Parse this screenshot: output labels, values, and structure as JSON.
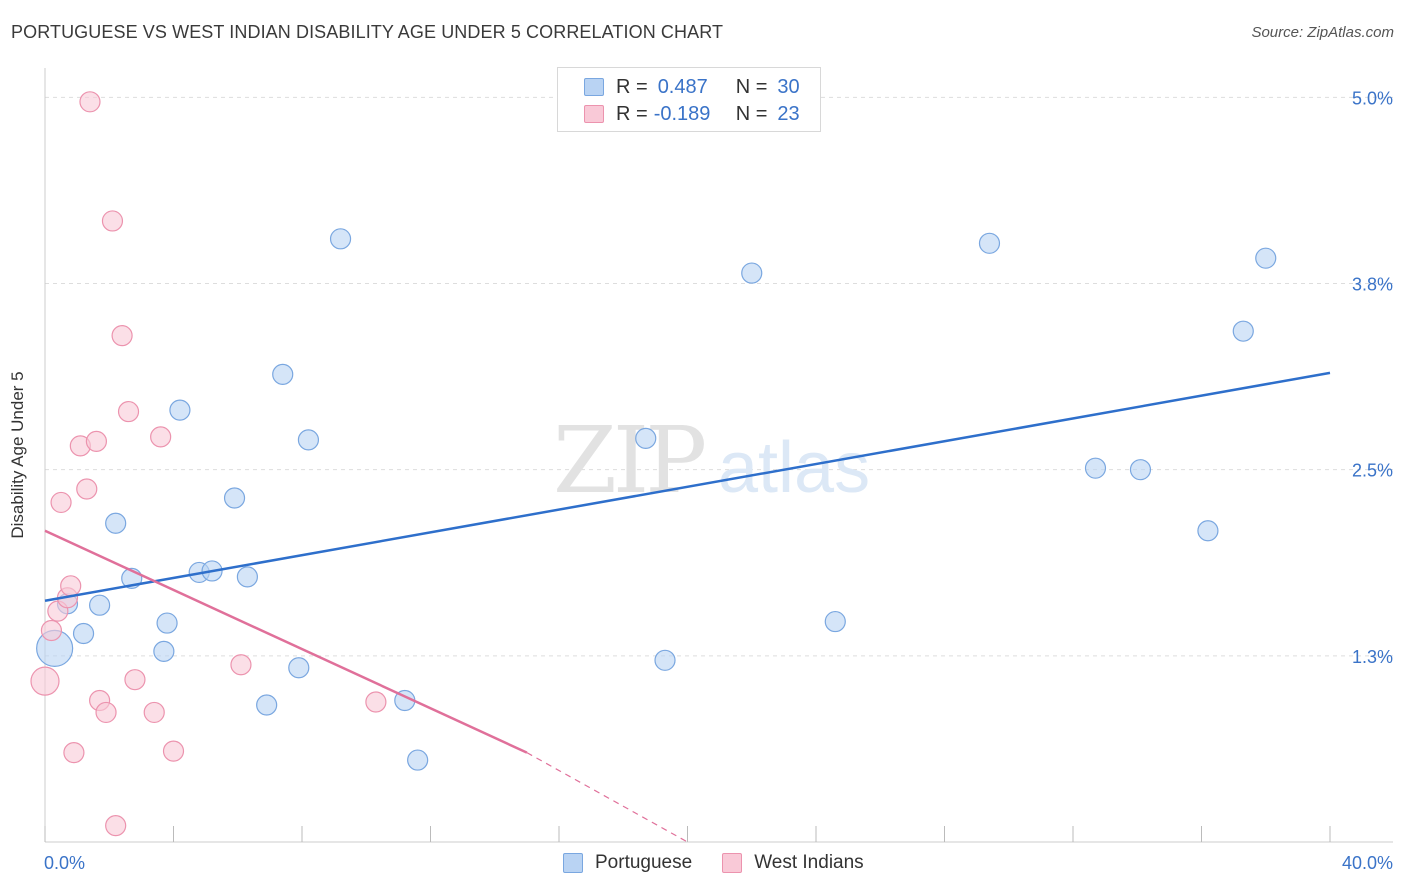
{
  "header": {
    "title": "PORTUGUESE VS WEST INDIAN DISABILITY AGE UNDER 5 CORRELATION CHART",
    "source": "Source: ZipAtlas.com"
  },
  "watermark": {
    "zip": "ZIP",
    "atlas": "atlas"
  },
  "legend": {
    "r_label": "R =",
    "n_label": "N =",
    "portuguese": {
      "r": "0.487",
      "n": "30"
    },
    "west_indians": {
      "r": "-0.189",
      "n": "23"
    }
  },
  "bottom_legend": {
    "portuguese": "Portuguese",
    "west_indians": "West Indians"
  },
  "colors": {
    "portuguese_fill": "#b9d3f3",
    "portuguese_stroke": "#7aa7e0",
    "portuguese_line": "#2e6fcb",
    "west_fill": "#f9c9d7",
    "west_stroke": "#ec93ae",
    "west_line": "#e0709a",
    "axis_text": "#3a73c8"
  },
  "chart_data": {
    "type": "scatter",
    "title": "PORTUGUESE VS WEST INDIAN DISABILITY AGE UNDER 5 CORRELATION CHART",
    "xlabel": "",
    "ylabel": "Disability Age Under 5",
    "xlim": [
      0,
      40
    ],
    "ylim": [
      0,
      5.15
    ],
    "x_tick_labels": [
      "0.0%",
      "40.0%"
    ],
    "y_ticks": [
      1.25,
      2.5,
      3.75,
      5.0
    ],
    "y_tick_labels": [
      "1.3%",
      "2.5%",
      "3.8%",
      "5.0%"
    ],
    "series": [
      {
        "name": "Portuguese",
        "points": [
          [
            0.3,
            1.3,
            18
          ],
          [
            0.7,
            1.6,
            10
          ],
          [
            1.2,
            1.4,
            10
          ],
          [
            1.7,
            1.59,
            10
          ],
          [
            2.2,
            2.14,
            10
          ],
          [
            2.7,
            1.77,
            10
          ],
          [
            3.7,
            1.28,
            10
          ],
          [
            3.8,
            1.47,
            10
          ],
          [
            4.2,
            2.9,
            10
          ],
          [
            4.8,
            1.81,
            10
          ],
          [
            5.2,
            1.82,
            10
          ],
          [
            5.9,
            2.31,
            10
          ],
          [
            6.3,
            1.78,
            10
          ],
          [
            6.9,
            0.92,
            10
          ],
          [
            7.4,
            3.14,
            10
          ],
          [
            7.9,
            1.17,
            10
          ],
          [
            8.2,
            2.7,
            10
          ],
          [
            9.2,
            4.05,
            10
          ],
          [
            11.2,
            0.95,
            10
          ],
          [
            11.6,
            0.55,
            10
          ],
          [
            18.7,
            2.71,
            10
          ],
          [
            19.3,
            1.22,
            10
          ],
          [
            22.0,
            3.82,
            10
          ],
          [
            24.6,
            1.48,
            10
          ],
          [
            29.4,
            4.02,
            10
          ],
          [
            32.7,
            2.51,
            10
          ],
          [
            34.1,
            2.5,
            10
          ],
          [
            36.2,
            2.09,
            10
          ],
          [
            37.3,
            3.43,
            10
          ],
          [
            38.0,
            3.92,
            10
          ]
        ]
      },
      {
        "name": "West Indians",
        "points": [
          [
            0.0,
            1.08,
            14
          ],
          [
            0.2,
            1.42,
            10
          ],
          [
            0.4,
            1.55,
            10
          ],
          [
            0.5,
            2.28,
            10
          ],
          [
            0.7,
            1.64,
            10
          ],
          [
            0.8,
            1.72,
            10
          ],
          [
            0.9,
            0.6,
            10
          ],
          [
            1.1,
            2.66,
            10
          ],
          [
            1.3,
            2.37,
            10
          ],
          [
            1.4,
            4.97,
            10
          ],
          [
            1.6,
            2.69,
            10
          ],
          [
            1.7,
            0.95,
            10
          ],
          [
            1.9,
            0.87,
            10
          ],
          [
            2.1,
            4.17,
            10
          ],
          [
            2.2,
            0.11,
            10
          ],
          [
            2.4,
            3.4,
            10
          ],
          [
            2.6,
            2.89,
            10
          ],
          [
            2.8,
            1.09,
            10
          ],
          [
            3.4,
            0.87,
            10
          ],
          [
            3.6,
            2.72,
            10
          ],
          [
            4.0,
            0.61,
            10
          ],
          [
            6.1,
            1.19,
            10
          ],
          [
            10.3,
            0.94,
            10
          ]
        ]
      }
    ],
    "trend_lines": [
      {
        "series": "Portuguese",
        "x": [
          0,
          40
        ],
        "y": [
          1.62,
          3.15
        ]
      },
      {
        "series": "West Indians",
        "x": [
          0,
          15
        ],
        "y": [
          2.09,
          0.6
        ],
        "dashed_extension_to": [
          20,
          0
        ]
      }
    ]
  }
}
